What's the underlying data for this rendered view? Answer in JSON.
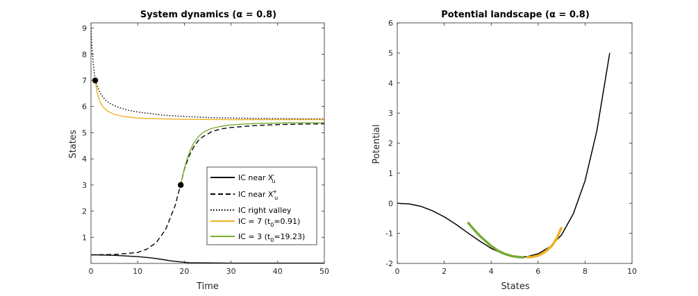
{
  "chart_data": [
    {
      "type": "line",
      "title": "System dynamics (α = 0.8)",
      "xlabel": "Time",
      "ylabel": "States",
      "xlim": [
        0,
        50
      ],
      "ylim": [
        0,
        9.2
      ],
      "xticks": [
        "0",
        "10",
        "20",
        "30",
        "40",
        "50"
      ],
      "yticks": [
        "1",
        "2",
        "3",
        "4",
        "5",
        "6",
        "7",
        "8",
        "9"
      ],
      "legend_position": "lower-right",
      "legend": [
        {
          "label": "IC near X",
          "sub": "u",
          "sup": "-",
          "style": "solid",
          "color": "#000000"
        },
        {
          "label": "IC near X",
          "sub": "u",
          "sup": "+",
          "style": "dashed",
          "color": "#000000"
        },
        {
          "label": "IC right valley",
          "style": "dotted",
          "color": "#000000"
        },
        {
          "label": "IC = 7 (t",
          "sub": "0",
          "tail": "=0.91)",
          "style": "solid",
          "color": "#EDB120"
        },
        {
          "label": "IC = 3 (t",
          "sub": "0",
          "tail": "=19.23)",
          "style": "solid",
          "color": "#77AC30"
        }
      ],
      "series": [
        {
          "style": "solid",
          "color": "#000000",
          "x": [
            0,
            5,
            10,
            13,
            15,
            17,
            19,
            21,
            24,
            30,
            40,
            50
          ],
          "y": [
            0.33,
            0.31,
            0.26,
            0.21,
            0.16,
            0.1,
            0.06,
            0.03,
            0.02,
            0.01,
            0.01,
            0.01
          ]
        },
        {
          "style": "dashed",
          "color": "#000000",
          "x": [
            0,
            5,
            10,
            12,
            14,
            16,
            18,
            19.2,
            20,
            21,
            22,
            23,
            24,
            26,
            28,
            30,
            35,
            40,
            45,
            50
          ],
          "y": [
            0.33,
            0.34,
            0.42,
            0.55,
            0.8,
            1.3,
            2.2,
            3.0,
            3.6,
            4.1,
            4.45,
            4.7,
            4.85,
            5.05,
            5.15,
            5.2,
            5.27,
            5.31,
            5.33,
            5.34
          ]
        },
        {
          "style": "dotted",
          "color": "#000000",
          "x": [
            0,
            0.2,
            0.5,
            0.91,
            1.5,
            2,
            3,
            4,
            6,
            8,
            10,
            15,
            20,
            25,
            30,
            35,
            40,
            45,
            50
          ],
          "y": [
            9.0,
            8.3,
            7.6,
            7.0,
            6.7,
            6.5,
            6.27,
            6.12,
            5.96,
            5.86,
            5.79,
            5.68,
            5.62,
            5.58,
            5.56,
            5.55,
            5.54,
            5.53,
            5.53
          ]
        },
        {
          "style": "solid",
          "color": "#EDB120",
          "x": [
            0.91,
            1.3,
            1.8,
            2.5,
            3.5,
            5,
            7,
            10,
            15,
            20,
            30,
            40,
            50
          ],
          "y": [
            7.0,
            6.55,
            6.25,
            6.0,
            5.83,
            5.7,
            5.62,
            5.56,
            5.53,
            5.51,
            5.5,
            5.5,
            5.5
          ]
        },
        {
          "style": "solid",
          "color": "#77AC30",
          "x": [
            19.23,
            19.8,
            20.5,
            21.2,
            22,
            23,
            24,
            25,
            26,
            28,
            30,
            35,
            40,
            45,
            50
          ],
          "y": [
            3.0,
            3.5,
            3.95,
            4.3,
            4.6,
            4.85,
            5.0,
            5.1,
            5.17,
            5.25,
            5.3,
            5.35,
            5.37,
            5.38,
            5.38
          ]
        }
      ],
      "markers": [
        {
          "x": 0.91,
          "y": 7.0
        },
        {
          "x": 19.23,
          "y": 3.0
        }
      ]
    },
    {
      "type": "line",
      "title": "Potential landscape (α = 0.8)",
      "xlabel": "States",
      "ylabel": "Potential",
      "xlim": [
        0,
        10
      ],
      "ylim": [
        -2,
        6
      ],
      "xticks": [
        "0",
        "2",
        "4",
        "6",
        "8",
        "10"
      ],
      "yticks": [
        "-2",
        "-1",
        "0",
        "1",
        "2",
        "3",
        "4",
        "5",
        "6"
      ],
      "series": [
        {
          "style": "solid",
          "color": "#000000",
          "width": 1.5,
          "x": [
            0,
            0.5,
            1,
            1.5,
            2,
            2.5,
            3,
            3.5,
            4,
            4.5,
            5,
            5.5,
            6,
            6.5,
            7,
            7.5,
            8,
            8.5,
            9.05
          ],
          "y": [
            0,
            -0.02,
            -0.1,
            -0.25,
            -0.45,
            -0.7,
            -0.98,
            -1.25,
            -1.5,
            -1.68,
            -1.78,
            -1.78,
            -1.68,
            -1.45,
            -1.05,
            -0.35,
            0.75,
            2.4,
            5.0
          ]
        },
        {
          "style": "solid",
          "color": "#77AC30",
          "width": 3.5,
          "x": [
            3.0,
            3.25,
            3.5,
            3.75,
            4.0,
            4.3,
            4.6,
            4.9,
            5.2,
            5.4
          ],
          "y": [
            -0.63,
            -0.86,
            -1.07,
            -1.25,
            -1.42,
            -1.58,
            -1.69,
            -1.76,
            -1.79,
            -1.8
          ]
        },
        {
          "style": "solid",
          "color": "#EDB120",
          "width": 3.5,
          "x": [
            5.5,
            5.7,
            6.0,
            6.2,
            6.4,
            6.6,
            6.8,
            7.0
          ],
          "y": [
            -1.79,
            -1.79,
            -1.74,
            -1.66,
            -1.55,
            -1.4,
            -1.16,
            -0.8
          ]
        }
      ]
    }
  ]
}
